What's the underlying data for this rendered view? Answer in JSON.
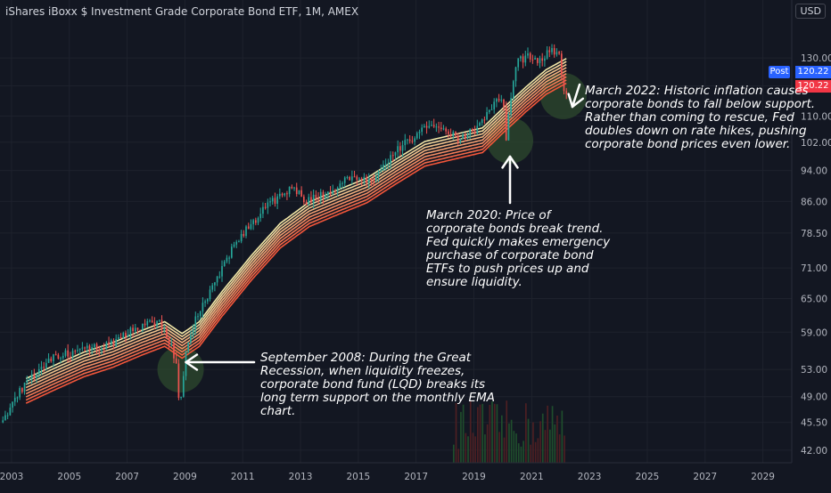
{
  "title": "iShares iBoxx $ Investment Grade Corporate Bond ETF, 1M, AMEX",
  "currency_label": "USD",
  "post_label": "Post",
  "last_price": "120.22",
  "last_price_secondary": "120.22",
  "colors": {
    "background": "#131722",
    "candle_up": "#26a69a",
    "candle_down": "#ef5350",
    "ribbon_top": "#fff3b0",
    "ribbon_bottom": "#ff5a3c",
    "arrow": "#ffffff",
    "circle": "#2e4a2e",
    "volume_up": "#1f4d2c",
    "volume_down": "#4d1f22"
  },
  "annotations": {
    "a2008": [
      "September 2008: During the Great",
      "Recession, when liquidity freezes,",
      "corporate bond fund (LQD) breaks its",
      "long term support on the monthly EMA",
      "chart."
    ],
    "a2020": [
      "March 2020: Price of",
      "corporate bonds break trend.",
      "Fed quickly makes emergency",
      "purchase of corporate bond",
      "ETFs to push prices up and",
      "ensure liquidity."
    ],
    "a2022": [
      "March 2022: Historic inflation causes",
      "corporate bonds to fall below support.",
      "Rather than coming to rescue, Fed",
      "doubles down on rate hikes, pushing",
      "corporate bond prices even lower."
    ]
  },
  "chart_data": {
    "type": "line",
    "scale": "log",
    "ylim": [
      40.5,
      143
    ],
    "xlim": [
      2002.6,
      2030.0
    ],
    "y_ticks": [
      "130.00",
      "120.00",
      "110.00",
      "102.00",
      "94.00",
      "86.00",
      "78.50",
      "71.00",
      "65.00",
      "59.00",
      "53.00",
      "49.00",
      "45.50",
      "42.00"
    ],
    "x_ticks": [
      "2003",
      "2005",
      "2007",
      "2009",
      "2011",
      "2013",
      "2015",
      "2017",
      "2019",
      "2021",
      "2023",
      "2025",
      "2027",
      "2029"
    ],
    "price_path": [
      [
        2002.7,
        45.5
      ],
      [
        2003.5,
        50.5
      ],
      [
        2004.5,
        55
      ],
      [
        2005.5,
        56
      ],
      [
        2006.5,
        57
      ],
      [
        2007.5,
        60
      ],
      [
        2008.2,
        61
      ],
      [
        2008.6,
        57
      ],
      [
        2008.8,
        53
      ],
      [
        2008.9,
        46.5
      ],
      [
        2009.1,
        55
      ],
      [
        2009.5,
        62
      ],
      [
        2010.0,
        67
      ],
      [
        2010.8,
        76
      ],
      [
        2011.8,
        84
      ],
      [
        2012.8,
        90
      ],
      [
        2013.3,
        86
      ],
      [
        2014.0,
        88
      ],
      [
        2014.8,
        92
      ],
      [
        2015.5,
        91
      ],
      [
        2016.3,
        99
      ],
      [
        2016.9,
        103
      ],
      [
        2017.6,
        107
      ],
      [
        2018.1,
        106
      ],
      [
        2018.6,
        103
      ],
      [
        2019.2,
        106
      ],
      [
        2019.7,
        113
      ],
      [
        2020.1,
        117
      ],
      [
        2020.2,
        102
      ],
      [
        2020.35,
        116
      ],
      [
        2020.6,
        129
      ],
      [
        2021.0,
        131
      ],
      [
        2021.3,
        128
      ],
      [
        2021.8,
        134
      ],
      [
        2022.05,
        130
      ],
      [
        2022.2,
        118
      ]
    ],
    "ema_path": [
      [
        2003.5,
        50.5
      ],
      [
        2004.5,
        52.5
      ],
      [
        2005.5,
        54.5
      ],
      [
        2006.5,
        56
      ],
      [
        2007.5,
        58
      ],
      [
        2008.3,
        59.5
      ],
      [
        2008.9,
        57.5
      ],
      [
        2009.5,
        59.5
      ],
      [
        2010.3,
        65
      ],
      [
        2011.3,
        72
      ],
      [
        2012.3,
        79
      ],
      [
        2013.3,
        84
      ],
      [
        2014.3,
        87
      ],
      [
        2015.3,
        90
      ],
      [
        2016.3,
        95
      ],
      [
        2017.3,
        100
      ],
      [
        2018.3,
        102
      ],
      [
        2019.3,
        104
      ],
      [
        2020.0,
        110
      ],
      [
        2020.8,
        117
      ],
      [
        2021.5,
        123
      ],
      [
        2022.2,
        127
      ]
    ],
    "events": [
      {
        "x": 2008.85,
        "y": 53.0
      },
      {
        "x": 2020.25,
        "y": 102.5
      },
      {
        "x": 2022.1,
        "y": 116.5
      }
    ],
    "volume_period": [
      2018.3,
      2022.2
    ]
  }
}
